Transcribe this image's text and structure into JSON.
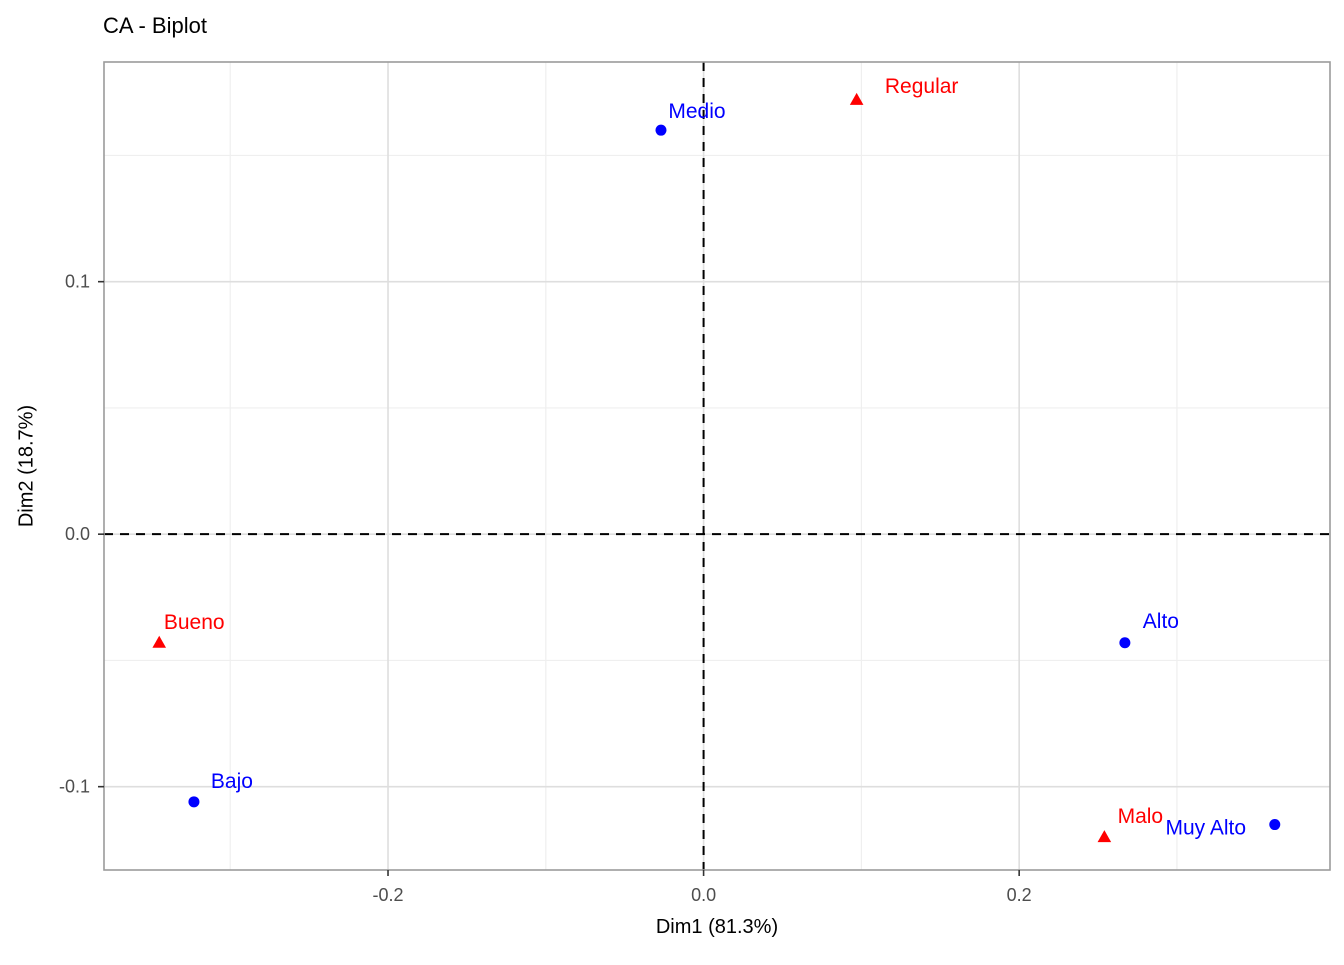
{
  "chart_data": {
    "type": "scatter",
    "title": "CA - Biplot",
    "xlabel": "Dim1 (81.3%)",
    "ylabel": "Dim2 (18.7%)",
    "xlim": [
      -0.38,
      0.397
    ],
    "ylim": [
      -0.133,
      0.187
    ],
    "grid": true,
    "legend_position": "none",
    "x_ticks": {
      "major": [
        -0.2,
        0,
        0.2
      ],
      "major_labels": [
        "-0.2",
        "0.0",
        "0.2"
      ],
      "minor": [
        -0.3,
        -0.1,
        0.1,
        0.3
      ]
    },
    "y_ticks": {
      "major": [
        -0.1,
        0,
        0.1
      ],
      "major_labels": [
        "-0.1",
        "0.0",
        "0.1"
      ],
      "minor": [
        -0.05,
        0.05,
        0.15
      ]
    },
    "reference_lines": [
      {
        "axis": "x",
        "value": 0,
        "style": "dashed"
      },
      {
        "axis": "y",
        "value": 0,
        "style": "dashed"
      }
    ],
    "series": [
      {
        "name": "rows",
        "marker": "circle",
        "color": "#0000FF",
        "points": [
          {
            "label": "Bajo",
            "x": -0.323,
            "y": -0.106,
            "label_offset": [
              38,
              -21
            ]
          },
          {
            "label": "Medio",
            "x": -0.027,
            "y": 0.16,
            "label_offset": [
              36,
              -19
            ]
          },
          {
            "label": "Alto",
            "x": 0.267,
            "y": -0.043,
            "label_offset": [
              36,
              -22
            ]
          },
          {
            "label": "Muy Alto",
            "x": 0.362,
            "y": -0.115,
            "label_offset": [
              -69,
              3
            ]
          }
        ]
      },
      {
        "name": "columns",
        "marker": "triangle",
        "color": "#FF0000",
        "points": [
          {
            "label": "Bueno",
            "x": -0.345,
            "y": -0.043,
            "label_offset": [
              35,
              -21
            ]
          },
          {
            "label": "Regular",
            "x": 0.097,
            "y": 0.172,
            "label_offset": [
              65,
              -14
            ]
          },
          {
            "label": "Malo",
            "x": 0.254,
            "y": -0.12,
            "label_offset": [
              36,
              -21
            ]
          }
        ]
      }
    ],
    "theme": {
      "background": "#FFFFFF",
      "panel_border_color": "#9B9B9B",
      "grid_major_color": "#DEDEDE",
      "grid_minor_color": "#EFEFEF",
      "tick_color": "#333333",
      "tick_label_color": "#4D4D4D",
      "title_color": "#000000",
      "reference_line_color": "#000000"
    }
  }
}
